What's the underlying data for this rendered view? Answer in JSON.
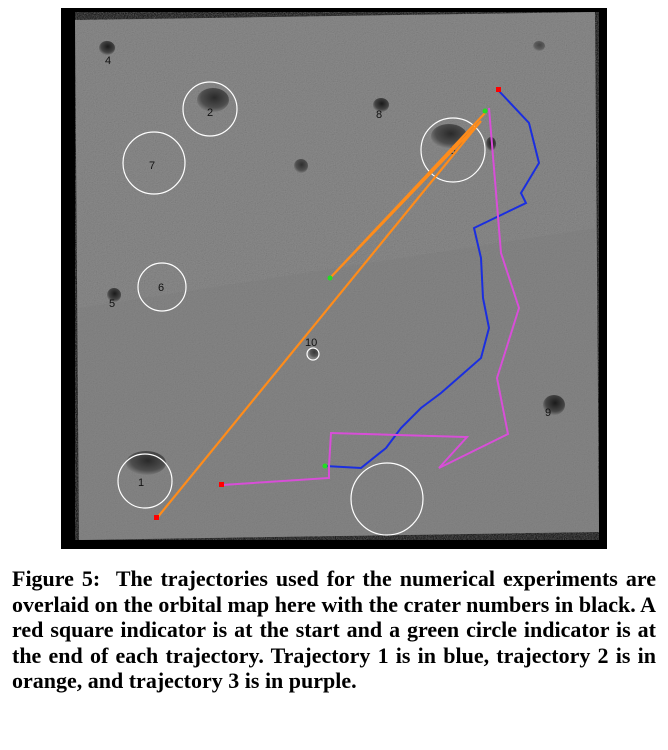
{
  "figure": {
    "label": "Figure 5",
    "separator": ":",
    "caption": "The trajectories used for the numerical experiments are overlaid on the orbital map here with the crater numbers in black. A red square indicator is at the start and a green circle indicator is at the end of each trajectory. Trajectory 1 is in blue, trajectory 2 is in orange, and trajectory 3 is in purple."
  },
  "craters": [
    {
      "number": "1"
    },
    {
      "number": "2"
    },
    {
      "number": "3"
    },
    {
      "number": "4"
    },
    {
      "number": "5"
    },
    {
      "number": "6"
    },
    {
      "number": "7"
    },
    {
      "number": "8"
    },
    {
      "number": "9"
    },
    {
      "number": "10"
    }
  ],
  "trajectories": [
    {
      "number": 1,
      "color": "#1a2ee0",
      "color_name": "blue"
    },
    {
      "number": 2,
      "color": "#ff8c1a",
      "color_name": "orange"
    },
    {
      "number": 3,
      "color": "#d84ed8",
      "color_name": "purple"
    }
  ],
  "indicators": {
    "start": {
      "shape": "square",
      "color": "#ff0000"
    },
    "end": {
      "shape": "circle",
      "color": "#22dd22"
    }
  },
  "map": {
    "surface_color": "#8c8c8c",
    "border_color": "#000000"
  }
}
